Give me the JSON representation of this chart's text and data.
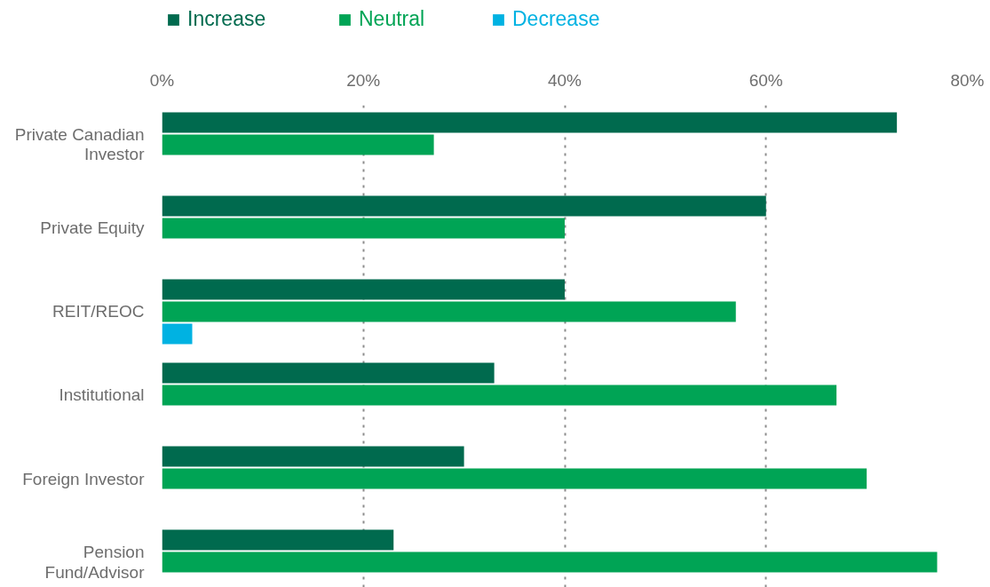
{
  "chart_data": {
    "type": "bar",
    "orientation": "horizontal",
    "categories": [
      "Private Canadian Investor",
      "Private Equity",
      "REIT/REOC",
      "Institutional",
      "Foreign Investor",
      "Pension Fund/Advisor"
    ],
    "series": [
      {
        "name": "Increase",
        "color": "#006a4e",
        "values": [
          73,
          60,
          40,
          33,
          30,
          23
        ]
      },
      {
        "name": "Neutral",
        "color": "#00a455",
        "values": [
          27,
          40,
          57,
          67,
          70,
          77
        ]
      },
      {
        "name": "Decrease",
        "color": "#00b2e2",
        "values": [
          0,
          0,
          3,
          0,
          0,
          0
        ]
      }
    ],
    "xlim": [
      0,
      80
    ],
    "xticks": [
      {
        "value": 0,
        "label": "0%"
      },
      {
        "value": 20,
        "label": "20%"
      },
      {
        "value": 40,
        "label": "40%"
      },
      {
        "value": 60,
        "label": "60%"
      },
      {
        "value": 80,
        "label": "80%"
      }
    ],
    "grid": "x",
    "legend": "top"
  }
}
